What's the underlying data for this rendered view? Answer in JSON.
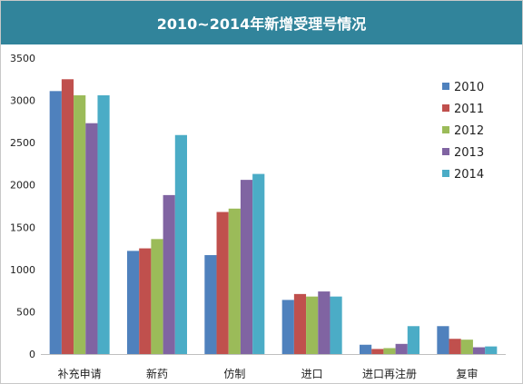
{
  "chart_data": {
    "type": "bar",
    "title": "2010~2014年新增受理号情况",
    "xlabel": "",
    "ylabel": "",
    "ylim": [
      0,
      3500
    ],
    "yticks": [
      0,
      500,
      1000,
      1500,
      2000,
      2500,
      3000,
      3500
    ],
    "grid": false,
    "legend_position": "right",
    "categories": [
      "补充申请",
      "新药",
      "仿制",
      "进口",
      "进口再注册",
      "复审"
    ],
    "series": [
      {
        "name": "2010",
        "color": "#4f81bd",
        "values": [
          3110,
          1220,
          1170,
          640,
          110,
          330
        ]
      },
      {
        "name": "2011",
        "color": "#c0504d",
        "values": [
          3250,
          1250,
          1680,
          710,
          60,
          180
        ]
      },
      {
        "name": "2012",
        "color": "#9bbb59",
        "values": [
          3060,
          1360,
          1720,
          680,
          70,
          170
        ]
      },
      {
        "name": "2013",
        "color": "#8064a2",
        "values": [
          2730,
          1880,
          2060,
          740,
          120,
          80
        ]
      },
      {
        "name": "2014",
        "color": "#4bacc6",
        "values": [
          3060,
          2590,
          2130,
          680,
          330,
          90
        ]
      }
    ]
  }
}
